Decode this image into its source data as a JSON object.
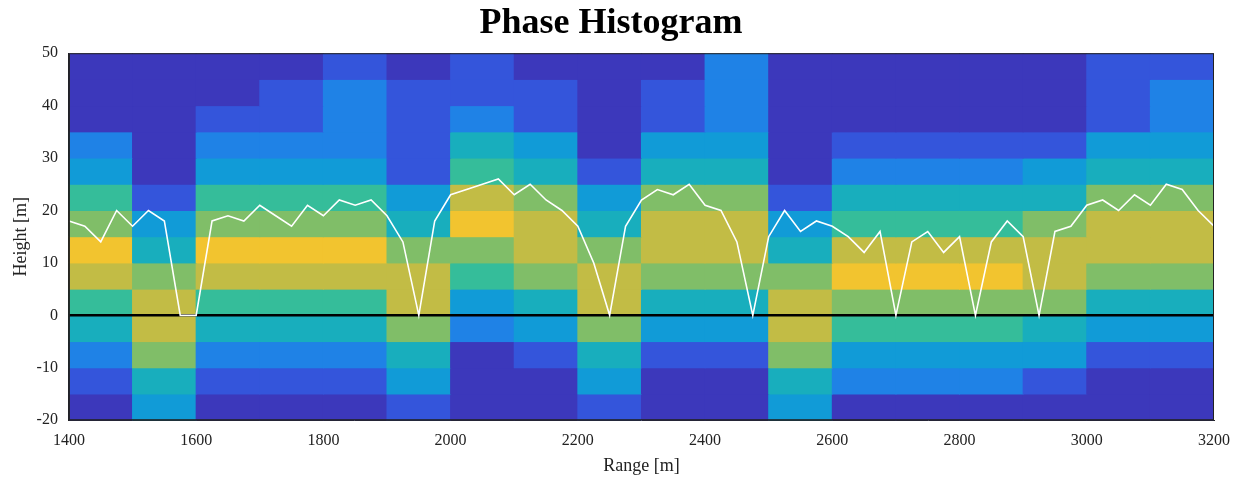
{
  "chart_data": {
    "type": "heatmap",
    "title": "Phase Histogram",
    "x_label": "Range [m]",
    "y_label": "Height [m]",
    "xlim": [
      1400,
      3200
    ],
    "xticks": [
      1400,
      1600,
      1800,
      2000,
      2200,
      2400,
      2600,
      2800,
      3000,
      3200
    ],
    "ylim": [
      -20,
      50
    ],
    "yticks": [
      -20,
      -10,
      0,
      10,
      20,
      30,
      40,
      50
    ],
    "grid": false,
    "heatmap": {
      "x_bins": [
        1400,
        1500,
        1600,
        1700,
        1800,
        1900,
        2000,
        2100,
        2200,
        2300,
        2400,
        2500,
        2600,
        2700,
        2800,
        2900,
        3000,
        3100,
        3200
      ],
      "y_bins": [
        -20,
        -15,
        -10,
        -5,
        0,
        5,
        10,
        15,
        20,
        25,
        30,
        35,
        40,
        45,
        50
      ],
      "clim": [
        0,
        10
      ],
      "cells": [
        [
          1,
          4,
          1,
          1,
          1,
          2,
          1,
          1,
          2,
          1,
          1,
          4,
          1,
          1,
          1,
          1,
          1,
          1
        ],
        [
          2,
          5,
          2,
          2,
          2,
          4,
          1,
          1,
          4,
          1,
          1,
          5,
          3,
          3,
          3,
          2,
          1,
          1
        ],
        [
          3,
          7,
          3,
          3,
          3,
          5,
          1,
          2,
          5,
          2,
          2,
          7,
          4,
          4,
          4,
          4,
          2,
          2
        ],
        [
          5,
          8,
          5,
          5,
          5,
          7,
          3,
          4,
          7,
          4,
          4,
          8,
          6,
          6,
          6,
          5,
          4,
          4
        ],
        [
          6,
          8,
          6,
          6,
          6,
          8,
          4,
          5,
          8,
          5,
          5,
          8,
          7,
          7,
          7,
          7,
          5,
          5
        ],
        [
          8,
          7,
          8,
          8,
          8,
          8,
          6,
          7,
          8,
          7,
          7,
          7,
          9,
          9,
          9,
          8,
          7,
          7
        ],
        [
          9,
          5,
          9,
          9,
          9,
          7,
          7,
          8,
          7,
          8,
          8,
          5,
          8,
          8,
          8,
          8,
          8,
          8
        ],
        [
          7,
          4,
          7,
          7,
          7,
          5,
          9,
          8,
          5,
          8,
          8,
          4,
          6,
          6,
          6,
          7,
          8,
          8
        ],
        [
          6,
          2,
          6,
          6,
          6,
          4,
          8,
          7,
          4,
          7,
          7,
          2,
          5,
          5,
          5,
          5,
          7,
          7
        ],
        [
          4,
          1,
          4,
          4,
          4,
          2,
          6,
          5,
          2,
          5,
          5,
          1,
          3,
          3,
          3,
          4,
          5,
          5
        ],
        [
          3,
          1,
          3,
          3,
          3,
          2,
          5,
          4,
          1,
          4,
          4,
          1,
          2,
          2,
          2,
          2,
          4,
          4
        ],
        [
          1,
          1,
          2,
          2,
          3,
          2,
          3,
          2,
          1,
          2,
          3,
          1,
          1,
          1,
          1,
          1,
          2,
          3
        ],
        [
          1,
          1,
          1,
          2,
          3,
          2,
          2,
          2,
          1,
          2,
          3,
          1,
          1,
          1,
          1,
          1,
          2,
          3
        ],
        [
          1,
          1,
          1,
          1,
          2,
          1,
          2,
          1,
          1,
          1,
          3,
          1,
          1,
          1,
          1,
          1,
          2,
          2
        ]
      ]
    },
    "series": [
      {
        "type": "line",
        "color": "#ffffff",
        "x": [
          1400,
          1425,
          1450,
          1475,
          1500,
          1525,
          1550,
          1575,
          1600,
          1625,
          1650,
          1675,
          1700,
          1725,
          1750,
          1775,
          1800,
          1825,
          1850,
          1875,
          1900,
          1925,
          1950,
          1975,
          2000,
          2025,
          2050,
          2075,
          2100,
          2125,
          2150,
          2175,
          2200,
          2225,
          2250,
          2275,
          2300,
          2325,
          2350,
          2375,
          2400,
          2425,
          2450,
          2475,
          2500,
          2525,
          2550,
          2575,
          2600,
          2625,
          2650,
          2675,
          2700,
          2725,
          2750,
          2775,
          2800,
          2825,
          2850,
          2875,
          2900,
          2925,
          2950,
          2975,
          3000,
          3025,
          3050,
          3075,
          3100,
          3125,
          3150,
          3175,
          3200
        ],
        "values": [
          18,
          17,
          14,
          20,
          17,
          20,
          18,
          0,
          0,
          18,
          19,
          18,
          21,
          19,
          17,
          21,
          19,
          22,
          21,
          22,
          19,
          14,
          0,
          18,
          23,
          24,
          25,
          26,
          23,
          25,
          22,
          20,
          17,
          10,
          0,
          17,
          22,
          24,
          23,
          25,
          21,
          20,
          14,
          0,
          15,
          20,
          16,
          18,
          17,
          15,
          12,
          16,
          0,
          14,
          16,
          12,
          15,
          0,
          14,
          18,
          15,
          0,
          16,
          17,
          21,
          22,
          20,
          23,
          21,
          25,
          24,
          20,
          17
        ]
      },
      {
        "type": "line",
        "color": "#000000",
        "x": [
          1400,
          3200
        ],
        "values": [
          0,
          0
        ]
      }
    ]
  }
}
